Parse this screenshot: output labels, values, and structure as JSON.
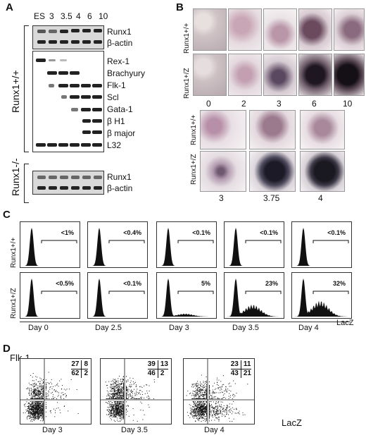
{
  "panels": {
    "a": "A",
    "b": "B",
    "c": "C",
    "d": "D"
  },
  "panel_a": {
    "lanes": [
      "ES",
      "3",
      "3.5",
      "4",
      "6",
      "10"
    ],
    "genotype_wt": "Runx1+/+",
    "genotype_ko": "Runx1-/-",
    "top_genes": [
      "Runx1",
      "β-actin"
    ],
    "mid_genes": [
      "Rex-1",
      "Brachyury",
      "Flk-1",
      "Scl",
      "Gata-1",
      "β H1",
      "β major",
      "L32"
    ],
    "bottom_genes": [
      "Runx1",
      "β-actin"
    ]
  },
  "panel_b": {
    "row_wt": "Runx1+/+",
    "row_het": "Runx1+/Z",
    "days_top": [
      "0",
      "2",
      "3",
      "6",
      "10"
    ],
    "days_bottom": [
      "3",
      "3.75",
      "4"
    ]
  },
  "panel_c": {
    "row_wt": "Runx1+/+",
    "row_het": "Runx1+/Z",
    "days": [
      "Day 0",
      "Day 2.5",
      "Day 3",
      "Day 3.5",
      "Day 4"
    ],
    "pct_wt": [
      "<1%",
      "<0.4%",
      "<0.1%",
      "<0.1%",
      "<0.1%"
    ],
    "pct_het": [
      "<0.5%",
      "<0.1%",
      "5%",
      "23%",
      "32%"
    ],
    "xlabel": "LacZ"
  },
  "panel_d": {
    "ylabel": "Flk-1",
    "xlabel": "LacZ",
    "days": [
      "Day 3",
      "Day 3.5",
      "Day 4"
    ],
    "quadrants": [
      {
        "ul": "27",
        "ur": "8",
        "ll": "62",
        "lr": "2"
      },
      {
        "ul": "39",
        "ur": "13",
        "ll": "46",
        "lr": "2"
      },
      {
        "ul": "23",
        "ur": "11",
        "ll": "43",
        "lr": "21"
      }
    ]
  }
}
